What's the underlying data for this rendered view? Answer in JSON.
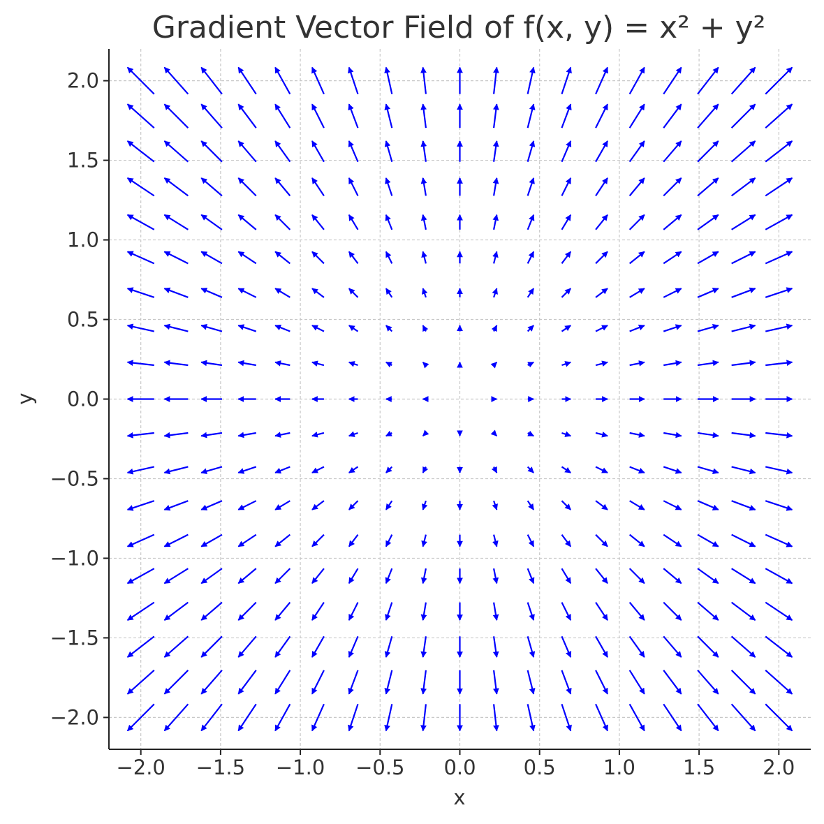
{
  "chart_data": {
    "type": "quiver",
    "title": "Gradient Vector Field of f(x, y) = x² + y²",
    "function": "f(x, y) = x² + y²",
    "gradient": [
      "2x",
      "2y"
    ],
    "xlabel": "x",
    "ylabel": "y",
    "xlim": [
      -2.2,
      2.2
    ],
    "ylim": [
      -2.2,
      2.2
    ],
    "grid": true,
    "color": "#0000ff",
    "grid_points": {
      "x": [
        -2.0,
        -1.778,
        -1.556,
        -1.333,
        -1.111,
        -0.889,
        -0.667,
        -0.444,
        -0.222,
        0.0,
        0.222,
        0.444,
        0.667,
        0.889,
        1.111,
        1.333,
        1.556,
        1.778,
        2.0
      ],
      "y": [
        -2.0,
        -1.778,
        -1.556,
        -1.333,
        -1.111,
        -0.889,
        -0.667,
        -0.444,
        -0.222,
        0.0,
        0.222,
        0.444,
        0.667,
        0.889,
        1.111,
        1.333,
        1.556,
        1.778,
        2.0
      ]
    },
    "x_ticks": [
      -2.0,
      -1.5,
      -1.0,
      -0.5,
      0.0,
      0.5,
      1.0,
      1.5,
      2.0
    ],
    "y_ticks": [
      -2.0,
      -1.5,
      -1.0,
      -0.5,
      0.0,
      0.5,
      1.0,
      1.5,
      2.0
    ],
    "x_tick_labels": [
      "−2.0",
      "−1.5",
      "−1.0",
      "−0.5",
      "0.0",
      "0.5",
      "1.0",
      "1.5",
      "2.0"
    ],
    "y_tick_labels": [
      "−2.0",
      "−1.5",
      "−1.0",
      "−0.5",
      "0.0",
      "0.5",
      "1.0",
      "1.5",
      "2.0"
    ]
  }
}
